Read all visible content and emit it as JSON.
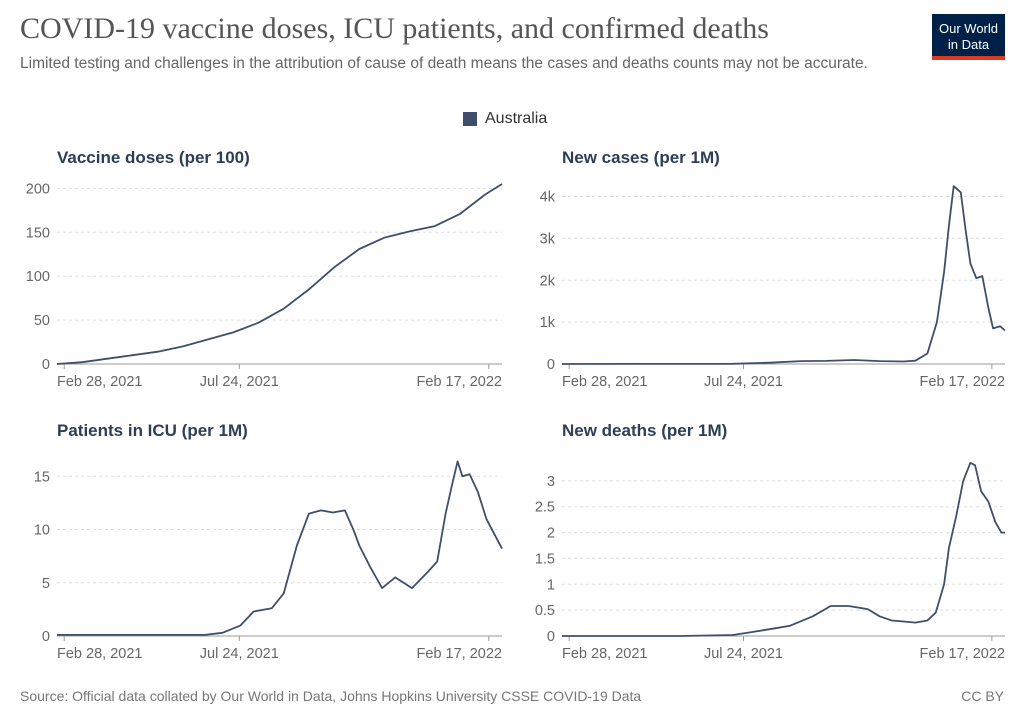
{
  "header": {
    "title": "COVID-19 vaccine doses, ICU patients, and confirmed deaths",
    "subtitle": "Limited testing and challenges in the attribution of cause of death means the cases and deaths counts may not be accurate."
  },
  "logo": {
    "line1": "Our World",
    "line2": "in Data"
  },
  "legend": {
    "label": "Australia",
    "color": "#3f4f6b"
  },
  "footer": {
    "source": "Source: Official data collated by Our World in Data, Johns Hopkins University CSSE COVID-19 Data",
    "license": "CC BY"
  },
  "chart_data": [
    {
      "type": "line",
      "title": "Vaccine doses (per 100)",
      "x_range": [
        "2021-02-22",
        "2022-02-28"
      ],
      "ylim": [
        0,
        205
      ],
      "y_ticks": [
        0,
        50,
        100,
        150,
        200
      ],
      "y_tick_labels": [
        "0",
        "50",
        "100",
        "150",
        "200"
      ],
      "x_ticks": [
        "2021-02-28",
        "2021-07-24",
        "2022-02-17"
      ],
      "x_tick_labels": [
        "Feb 28, 2021",
        "Jul 24, 2021",
        "Feb 17, 2022"
      ],
      "grid": true,
      "series": [
        {
          "name": "Australia",
          "x": [
            "2021-02-22",
            "2021-03-15",
            "2021-04-05",
            "2021-04-26",
            "2021-05-17",
            "2021-06-07",
            "2021-06-28",
            "2021-07-19",
            "2021-08-09",
            "2021-08-30",
            "2021-09-20",
            "2021-10-11",
            "2021-11-01",
            "2021-11-22",
            "2021-12-13",
            "2022-01-03",
            "2022-01-24",
            "2022-02-14",
            "2022-02-28"
          ],
          "y": [
            0,
            2,
            6,
            10,
            14,
            20,
            28,
            36,
            47,
            63,
            85,
            110,
            131,
            144,
            151,
            157,
            171,
            193,
            205
          ]
        }
      ]
    },
    {
      "type": "line",
      "title": "New cases (per 1M)",
      "x_range": [
        "2021-02-22",
        "2022-02-28"
      ],
      "ylim": [
        0,
        4300
      ],
      "y_ticks": [
        0,
        1000,
        2000,
        3000,
        4000
      ],
      "y_tick_labels": [
        "0",
        "1k",
        "2k",
        "3k",
        "4k"
      ],
      "x_ticks": [
        "2021-02-28",
        "2021-07-24",
        "2022-02-17"
      ],
      "x_tick_labels": [
        "Feb 28, 2021",
        "Jul 24, 2021",
        "Feb 17, 2022"
      ],
      "grid": true,
      "series": [
        {
          "name": "Australia",
          "x": [
            "2021-02-22",
            "2021-05-01",
            "2021-07-15",
            "2021-08-15",
            "2021-09-10",
            "2021-10-01",
            "2021-10-25",
            "2021-11-15",
            "2021-12-05",
            "2021-12-15",
            "2021-12-25",
            "2022-01-02",
            "2022-01-08",
            "2022-01-12",
            "2022-01-16",
            "2022-01-22",
            "2022-01-26",
            "2022-01-30",
            "2022-02-04",
            "2022-02-09",
            "2022-02-14",
            "2022-02-18",
            "2022-02-24",
            "2022-02-28"
          ],
          "y": [
            0,
            2,
            5,
            30,
            70,
            75,
            95,
            70,
            60,
            80,
            250,
            1000,
            2200,
            3300,
            4250,
            4100,
            3200,
            2400,
            2050,
            2100,
            1350,
            850,
            900,
            800
          ]
        }
      ]
    },
    {
      "type": "line",
      "title": "Patients in ICU (per 1M)",
      "x_range": [
        "2021-02-22",
        "2022-02-28"
      ],
      "ylim": [
        0,
        17
      ],
      "y_ticks": [
        0,
        5,
        10,
        15
      ],
      "y_tick_labels": [
        "0",
        "5",
        "10",
        "15"
      ],
      "x_ticks": [
        "2021-02-28",
        "2021-07-24",
        "2022-02-17"
      ],
      "x_tick_labels": [
        "Feb 28, 2021",
        "Jul 24, 2021",
        "Feb 17, 2022"
      ],
      "grid": true,
      "series": [
        {
          "name": "Australia",
          "x": [
            "2021-02-22",
            "2021-04-15",
            "2021-06-01",
            "2021-06-25",
            "2021-07-10",
            "2021-07-25",
            "2021-08-05",
            "2021-08-20",
            "2021-08-30",
            "2021-09-10",
            "2021-09-20",
            "2021-09-30",
            "2021-10-10",
            "2021-10-20",
            "2021-10-27",
            "2021-11-01",
            "2021-11-10",
            "2021-11-20",
            "2021-12-01",
            "2021-12-15",
            "2021-12-28",
            "2022-01-05",
            "2022-01-12",
            "2022-01-18",
            "2022-01-22",
            "2022-01-26",
            "2022-02-01",
            "2022-02-08",
            "2022-02-15",
            "2022-02-22",
            "2022-02-28"
          ],
          "y": [
            0.1,
            0.1,
            0.1,
            0.1,
            0.3,
            1.0,
            2.3,
            2.6,
            4.0,
            8.5,
            11.5,
            11.8,
            11.6,
            11.8,
            10.0,
            8.5,
            6.5,
            4.5,
            5.5,
            4.5,
            6.0,
            7.0,
            11.5,
            14.5,
            16.4,
            15.0,
            15.2,
            13.5,
            11.0,
            9.5,
            8.2
          ]
        }
      ]
    },
    {
      "type": "line",
      "title": "New deaths (per 1M)",
      "x_range": [
        "2021-02-22",
        "2022-02-28"
      ],
      "ylim": [
        0,
        3.5
      ],
      "y_ticks": [
        0,
        0.5,
        1,
        1.5,
        2,
        2.5,
        3
      ],
      "y_tick_labels": [
        "0",
        "0.5",
        "1",
        "1.5",
        "2",
        "2.5",
        "3"
      ],
      "x_ticks": [
        "2021-02-28",
        "2021-07-24",
        "2022-02-17"
      ],
      "x_tick_labels": [
        "Feb 28, 2021",
        "Jul 24, 2021",
        "Feb 17, 2022"
      ],
      "grid": true,
      "series": [
        {
          "name": "Australia",
          "x": [
            "2021-02-22",
            "2021-06-01",
            "2021-07-15",
            "2021-08-01",
            "2021-08-20",
            "2021-09-01",
            "2021-09-20",
            "2021-10-05",
            "2021-10-20",
            "2021-11-05",
            "2021-11-15",
            "2021-11-25",
            "2021-12-05",
            "2021-12-15",
            "2021-12-25",
            "2022-01-01",
            "2022-01-08",
            "2022-01-12",
            "2022-01-18",
            "2022-01-24",
            "2022-01-30",
            "2022-02-03",
            "2022-02-08",
            "2022-02-14",
            "2022-02-20",
            "2022-02-25",
            "2022-02-28"
          ],
          "y": [
            0,
            0,
            0.02,
            0.08,
            0.15,
            0.2,
            0.38,
            0.58,
            0.58,
            0.52,
            0.38,
            0.3,
            0.28,
            0.26,
            0.3,
            0.45,
            1.0,
            1.7,
            2.3,
            3.0,
            3.35,
            3.3,
            2.8,
            2.6,
            2.2,
            2.0,
            2.0
          ]
        }
      ]
    }
  ]
}
